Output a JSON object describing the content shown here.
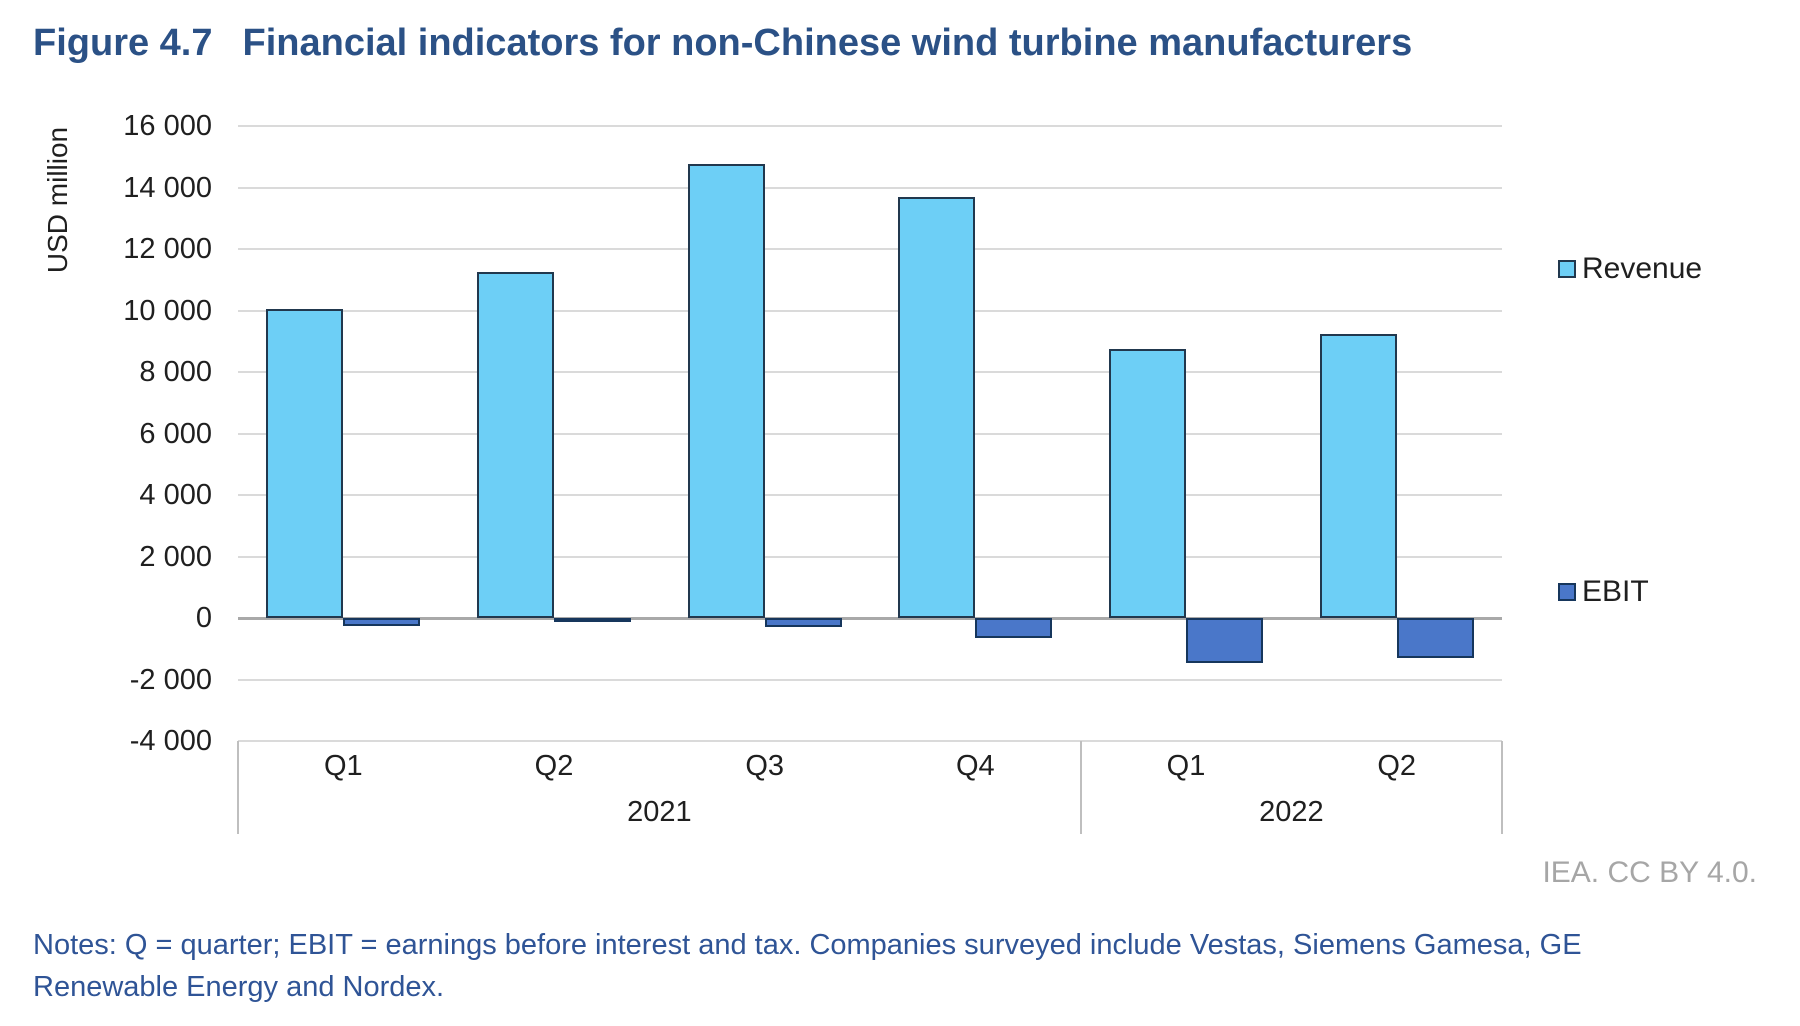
{
  "title": {
    "figure_number": "Figure 4.7",
    "text": "Financial indicators for non-Chinese wind turbine manufacturers"
  },
  "credit": "IEA. CC BY 4.0.",
  "notes": {
    "line1": "Notes: Q = quarter; EBIT = earnings before interest and tax. Companies surveyed include Vestas, Siemens Gamesa, GE",
    "line2": "Renewable Energy and Nordex."
  },
  "chart_data": {
    "type": "bar",
    "title": "Financial indicators for non-Chinese wind turbine manufacturers",
    "xlabel": "",
    "ylabel": "USD million",
    "ylim": [
      -4000,
      16000
    ],
    "grid": true,
    "legend_position": "right",
    "gridline_color": "#DADADA",
    "zero_line_color": "#A9A9A9",
    "frame_color": "#BFBFBF",
    "yticks": [
      {
        "value": 16000,
        "label": "16 000"
      },
      {
        "value": 14000,
        "label": "14 000"
      },
      {
        "value": 12000,
        "label": "12 000"
      },
      {
        "value": 10000,
        "label": "10 000"
      },
      {
        "value": 8000,
        "label": "8 000"
      },
      {
        "value": 6000,
        "label": "6 000"
      },
      {
        "value": 4000,
        "label": "4 000"
      },
      {
        "value": 2000,
        "label": "2 000"
      },
      {
        "value": 0,
        "label": "0"
      },
      {
        "value": -2000,
        "label": "-2 000"
      },
      {
        "value": -4000,
        "label": "-4 000"
      }
    ],
    "categories": [
      "Q1",
      "Q2",
      "Q3",
      "Q4",
      "Q1",
      "Q2"
    ],
    "year_groups": [
      {
        "label": "2021",
        "span": 4
      },
      {
        "label": "2022",
        "span": 2
      }
    ],
    "series": [
      {
        "name": "Revenue",
        "color": "#6DCFF6",
        "border": "#21384E",
        "values": [
          10050,
          11250,
          14750,
          13700,
          8750,
          9250
        ]
      },
      {
        "name": "EBIT",
        "color": "#4A77C9",
        "border": "#16365C",
        "values": [
          -250,
          -100,
          -300,
          -650,
          -1450,
          -1300
        ]
      }
    ]
  }
}
